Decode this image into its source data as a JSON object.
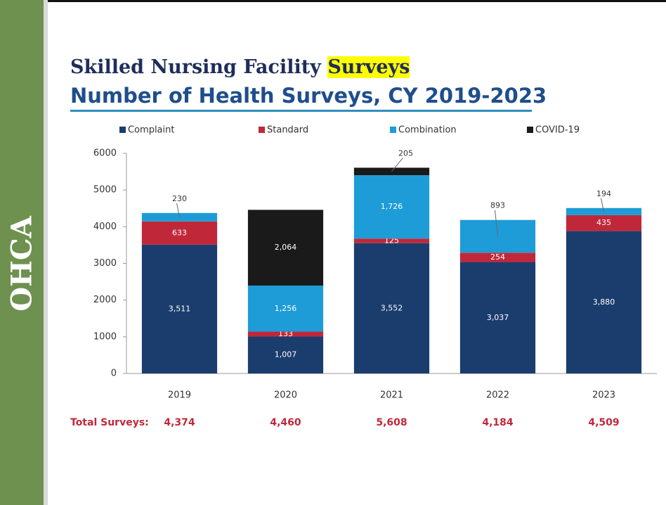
{
  "side_label": "OHCA",
  "heading": {
    "text": "Skilled Nursing Facility",
    "highlight": "Surveys"
  },
  "chart_data": {
    "type": "stacked_bar",
    "title": "Number of Health Surveys, CY 2019-2023",
    "categories": [
      "2019",
      "2020",
      "2021",
      "2022",
      "2023"
    ],
    "series": [
      {
        "name": "Complaint",
        "color": "#1b3d6e",
        "values": [
          3511,
          1007,
          3552,
          3037,
          3880
        ],
        "value_labels": [
          "3,511",
          "1,007",
          "3,552",
          "3,037",
          "3,880"
        ]
      },
      {
        "name": "Standard",
        "color": "#c0283a",
        "values": [
          633,
          133,
          125,
          254,
          435
        ]
      },
      {
        "name": "Combination",
        "color": "#1e9cd7",
        "values": [
          230,
          1256,
          1726,
          893,
          194
        ],
        "value_labels": [
          null,
          "1,256",
          "1,726",
          null,
          null
        ]
      },
      {
        "name": "COVID-19",
        "color": "#1a1a1a",
        "values": [
          null,
          2064,
          205,
          null,
          null
        ],
        "value_labels": [
          null,
          "2,064",
          null,
          null,
          null
        ]
      }
    ],
    "ylim": [
      0,
      6000
    ],
    "yticks": [
      0,
      1000,
      2000,
      3000,
      4000,
      5000,
      6000
    ],
    "legend": "top",
    "totals": {
      "label": "Total Surveys:",
      "values": [
        "4,374",
        "4,460",
        "5,608",
        "4,184",
        "4,509"
      ]
    }
  }
}
